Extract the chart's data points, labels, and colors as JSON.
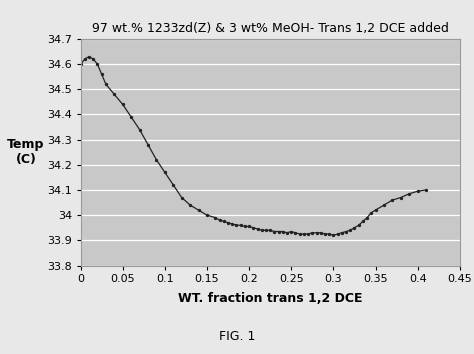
{
  "title": "97 wt.% 1233zd(Z) & 3 wt% MeOH- Trans 1,2 DCE added",
  "xlabel": "WT. fraction trans 1,2 DCE",
  "ylabel": "Temp\n(C)",
  "fig_label": "FIG. 1",
  "xlim": [
    0,
    0.45
  ],
  "ylim": [
    33.8,
    34.7
  ],
  "yticks": [
    33.8,
    33.9,
    34.0,
    34.1,
    34.2,
    34.3,
    34.4,
    34.5,
    34.6,
    34.7
  ],
  "xticks": [
    0,
    0.05,
    0.1,
    0.15,
    0.2,
    0.25,
    0.3,
    0.35,
    0.4,
    0.45
  ],
  "plot_bg_color": "#c8c8c8",
  "fig_bg_color": "#e8e8e8",
  "line_color": "#222222",
  "marker": ".",
  "x": [
    0.0,
    0.005,
    0.01,
    0.015,
    0.02,
    0.025,
    0.03,
    0.04,
    0.05,
    0.06,
    0.07,
    0.08,
    0.09,
    0.1,
    0.11,
    0.12,
    0.13,
    0.14,
    0.15,
    0.16,
    0.165,
    0.17,
    0.175,
    0.18,
    0.185,
    0.19,
    0.195,
    0.2,
    0.205,
    0.21,
    0.215,
    0.22,
    0.225,
    0.23,
    0.235,
    0.24,
    0.245,
    0.25,
    0.255,
    0.26,
    0.265,
    0.27,
    0.275,
    0.28,
    0.285,
    0.29,
    0.295,
    0.3,
    0.305,
    0.31,
    0.315,
    0.32,
    0.325,
    0.33,
    0.335,
    0.34,
    0.345,
    0.35,
    0.36,
    0.37,
    0.38,
    0.39,
    0.4,
    0.41
  ],
  "y": [
    34.6,
    34.62,
    34.63,
    34.62,
    34.6,
    34.56,
    34.52,
    34.48,
    34.44,
    34.39,
    34.34,
    34.28,
    34.22,
    34.17,
    34.12,
    34.07,
    34.04,
    34.02,
    34.0,
    33.99,
    33.98,
    33.975,
    33.97,
    33.965,
    33.96,
    33.96,
    33.955,
    33.955,
    33.95,
    33.945,
    33.94,
    33.94,
    33.94,
    33.935,
    33.935,
    33.935,
    33.93,
    33.935,
    33.93,
    33.925,
    33.925,
    33.925,
    33.93,
    33.93,
    33.93,
    33.925,
    33.925,
    33.92,
    33.925,
    33.93,
    33.935,
    33.94,
    33.95,
    33.96,
    33.975,
    33.99,
    34.01,
    34.02,
    34.04,
    34.06,
    34.07,
    34.085,
    34.095,
    34.1
  ]
}
